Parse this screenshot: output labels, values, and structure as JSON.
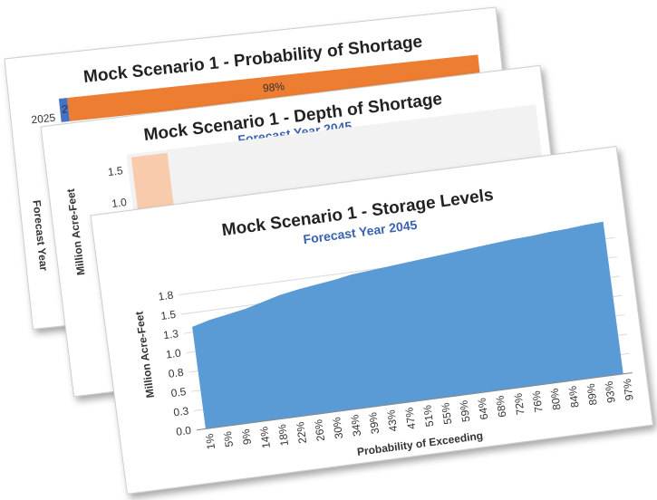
{
  "chart_data": [
    {
      "type": "bar",
      "orientation": "horizontal",
      "stacked": true,
      "title": "Mock Scenario 1  -  Probability of Shortage",
      "y_label": "Forecast Year",
      "categories": [
        "2025"
      ],
      "xlim": [
        0,
        100
      ],
      "series": [
        {
          "color": "#4472c4",
          "values": [
            2
          ],
          "value_labels": [
            "2%"
          ]
        },
        {
          "color": "#ed7d31",
          "values": [
            98
          ],
          "value_labels": [
            "98%"
          ]
        }
      ]
    },
    {
      "type": "bar",
      "title": "Mock Scenario 1  -  Depth of Shortage",
      "subtitle": "Forecast Year 2045",
      "y_label": "Million Acre-Feet",
      "categories": [
        null
      ],
      "values": [
        1.7
      ],
      "color": "#f8cbad",
      "ylim": [
        0,
        1.75
      ],
      "yticks": [
        {
          "value": 1,
          "label": "1.0"
        },
        1.5
      ]
    },
    {
      "type": "area",
      "title": "Mock Scenario 1  -  Storage Levels",
      "subtitle": "Forecast Year 2045",
      "x_label": "Probability of Exceeding",
      "y_label": "Million Acre-Feet",
      "categories": [
        "1%",
        "5%",
        "9%",
        "14%",
        "18%",
        "22%",
        "26%",
        "30%",
        "34%",
        "39%",
        "43%",
        "47%",
        "51%",
        "55%",
        "59%",
        "64%",
        "68%",
        "72%",
        "76%",
        "80%",
        "84%",
        "89%",
        "93%",
        "97%"
      ],
      "values": [
        1.32,
        1.38,
        1.42,
        1.46,
        1.52,
        1.58,
        1.62,
        1.65,
        1.68,
        1.72,
        1.74,
        1.76,
        1.78,
        1.8,
        1.82,
        1.84,
        1.86,
        1.88,
        1.9,
        1.91,
        1.93,
        1.94,
        1.96,
        1.97
      ],
      "color": "#5b9bd5",
      "ylim": [
        0,
        2
      ],
      "yticks": [
        {
          "value": 0,
          "label": "0.0"
        },
        {
          "value": 0.25,
          "label": "0.3"
        },
        0.5,
        {
          "value": 0.75,
          "label": "0.8"
        },
        {
          "value": 1,
          "label": "1.0"
        },
        {
          "value": 1.25,
          "label": "1.3"
        },
        1.5,
        {
          "value": 1.75,
          "label": "1.8"
        }
      ],
      "grid": true
    }
  ]
}
